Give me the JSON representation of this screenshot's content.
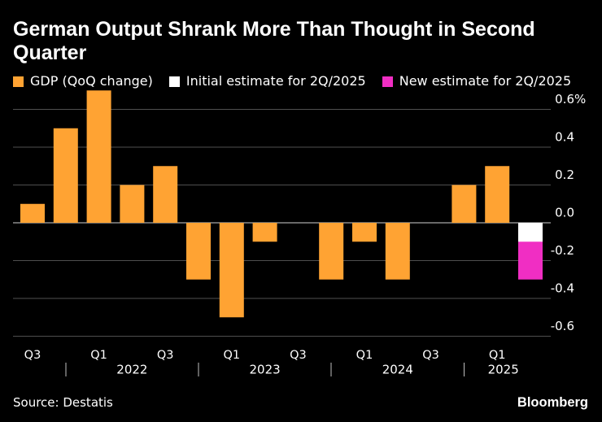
{
  "chart_data": {
    "type": "bar",
    "title": "German Output Shrank More Than Thought in Second Quarter",
    "xlabel": "",
    "ylabel": "",
    "categories": [
      "Q3",
      "",
      "Q1",
      "",
      "Q3",
      "",
      "Q1",
      "",
      "Q3",
      "",
      "Q1",
      "",
      "Q3",
      "",
      "Q1",
      ""
    ],
    "year_groups": [
      {
        "label": "2022",
        "from": 2,
        "to": 5
      },
      {
        "label": "2023",
        "from": 6,
        "to": 9
      },
      {
        "label": "2024",
        "from": 10,
        "to": 13
      },
      {
        "label": "2025",
        "from": 14,
        "to": 15
      }
    ],
    "series": [
      {
        "name": "GDP (QoQ change)",
        "color": "#ffa333",
        "values": [
          0.1,
          0.5,
          0.7,
          0.2,
          0.3,
          -0.3,
          -0.5,
          -0.1,
          0.0,
          -0.3,
          -0.1,
          -0.3,
          0.0,
          0.2,
          0.3,
          null
        ]
      },
      {
        "name": "Initial estimate for 2Q/2025",
        "color": "#ffffff",
        "values": [
          null,
          null,
          null,
          null,
          null,
          null,
          null,
          null,
          null,
          null,
          null,
          null,
          null,
          null,
          null,
          -0.1
        ]
      },
      {
        "name": "New estimate for 2Q/2025",
        "color": "#f02ec3",
        "values": [
          null,
          null,
          null,
          null,
          null,
          null,
          null,
          null,
          null,
          null,
          null,
          null,
          null,
          null,
          null,
          -0.3
        ]
      }
    ],
    "y_ticks": [
      0.6,
      0.4,
      0.2,
      0.0,
      -0.2,
      -0.4,
      -0.6
    ],
    "y_tick_labels": [
      "0.6%",
      "0.4",
      "0.2",
      "0.0",
      "-0.2",
      "-0.4",
      "-0.6"
    ],
    "ylim": [
      -0.6,
      0.6
    ],
    "grid": true,
    "legend_position": "top-left",
    "y_axis_position": "right"
  },
  "source": "Source: Destatis",
  "brand": "Bloomberg",
  "colors": {
    "background": "#000000",
    "text": "#ffffff",
    "gridline": "#4f4f4f",
    "zero_line": "#cfcfcf",
    "year_separator": "#bfbfbf"
  }
}
